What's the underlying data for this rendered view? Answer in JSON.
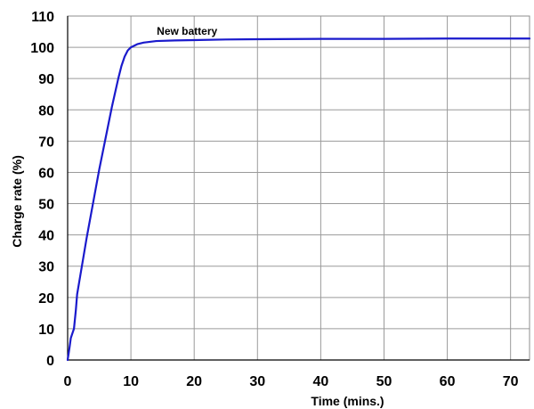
{
  "chart_data": {
    "type": "line",
    "title": "",
    "xlabel": "Time (mins.)",
    "ylabel": "Charge rate (%)",
    "xlim": [
      0,
      73
    ],
    "ylim": [
      0,
      110
    ],
    "xticks": [
      0,
      10,
      20,
      30,
      40,
      50,
      60,
      70
    ],
    "yticks": [
      0,
      10,
      20,
      30,
      40,
      50,
      60,
      70,
      80,
      90,
      100,
      110
    ],
    "grid": true,
    "legend": "none",
    "annotations": [
      {
        "text": "New battery",
        "x": 20,
        "y": 104
      }
    ],
    "series": [
      {
        "name": "New battery",
        "color": "#1a1acc",
        "x": [
          0,
          0.3,
          0.5,
          1.0,
          1.3,
          1.5,
          2,
          3,
          4,
          5,
          6,
          7,
          8,
          8.5,
          9,
          9.5,
          10,
          11,
          12,
          14,
          17,
          20,
          25,
          30,
          40,
          50,
          60,
          73
        ],
        "y": [
          0,
          4,
          7,
          10,
          16,
          21,
          27,
          39,
          50,
          61,
          71,
          81,
          90,
          94,
          97,
          99,
          100,
          101,
          101.5,
          102,
          102.2,
          102.3,
          102.5,
          102.6,
          102.7,
          102.7,
          102.8,
          102.8
        ]
      }
    ]
  }
}
